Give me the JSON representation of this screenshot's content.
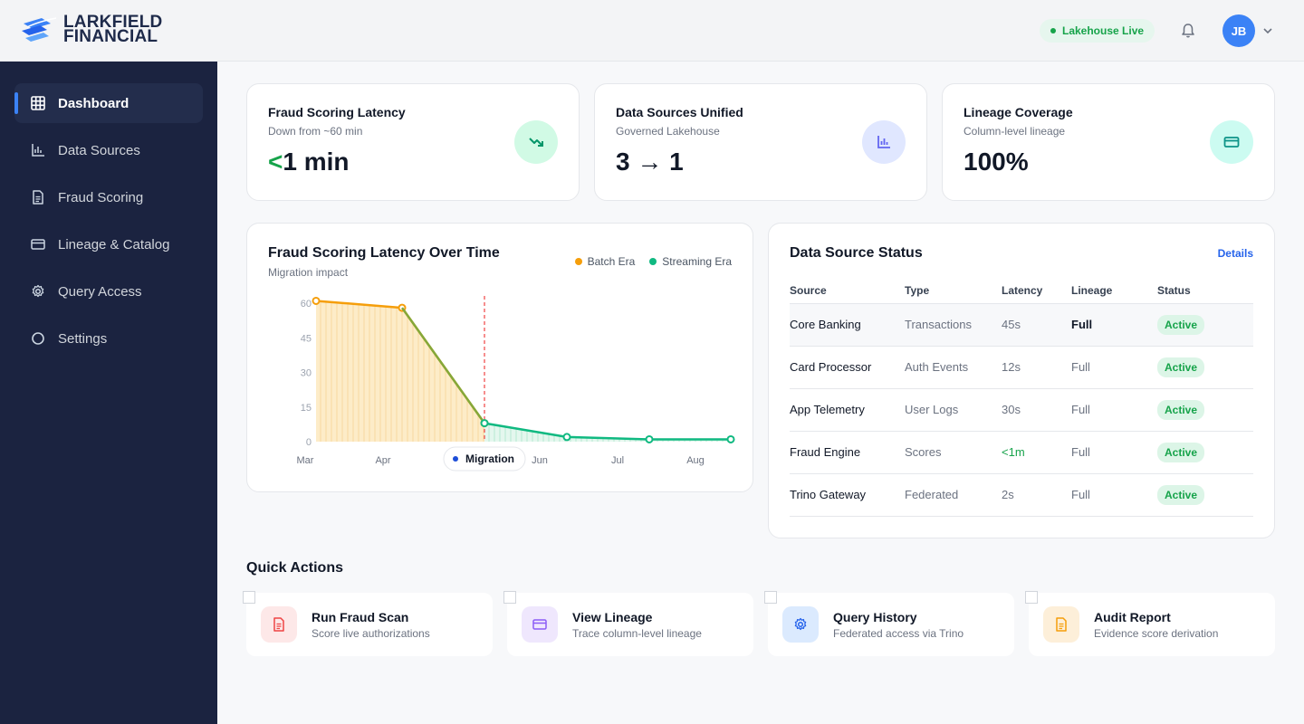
{
  "brand": {
    "line1": "LARKFIELD",
    "line2": "FINANCIAL"
  },
  "header": {
    "status_pill": "Lakehouse Live",
    "avatar_initials": "JB"
  },
  "sidebar": {
    "items": [
      {
        "label": "Dashboard",
        "icon": "grid-icon"
      },
      {
        "label": "Data Sources",
        "icon": "bar-chart-icon"
      },
      {
        "label": "Fraud Scoring",
        "icon": "document-icon"
      },
      {
        "label": "Lineage & Catalog",
        "icon": "card-icon"
      },
      {
        "label": "Query Access",
        "icon": "gear-icon"
      },
      {
        "label": "Settings",
        "icon": "circle-icon"
      }
    ]
  },
  "kpis": [
    {
      "title": "Fraud Scoring Latency",
      "subtitle": "Down from ~60 min",
      "value_prefix": "<",
      "value": "1 min",
      "icon": "trend-down-icon"
    },
    {
      "title": "Data Sources Unified",
      "subtitle": "Governed Lakehouse",
      "value": "3 → 1",
      "icon": "bar-chart-icon"
    },
    {
      "title": "Lineage Coverage",
      "subtitle": "Column-level lineage",
      "value": "100%",
      "icon": "card-icon"
    }
  ],
  "chart_panel": {
    "title": "Fraud Scoring Latency Over Time",
    "subtitle": "Migration impact"
  },
  "chart_data": {
    "type": "line",
    "x_tick_labels": [
      "Mar",
      "Apr",
      "Jun",
      "Jul",
      "Aug"
    ],
    "y_ticks": [
      0,
      15,
      30,
      45,
      60
    ],
    "ylim": [
      0,
      60
    ],
    "series": [
      {
        "name": "Batch Era",
        "color": "#f59e0b",
        "points": [
          [
            "Mar",
            61
          ],
          [
            "Apr",
            58
          ],
          [
            "Migration",
            8
          ]
        ]
      },
      {
        "name": "Streaming Era",
        "color": "#10b981",
        "points": [
          [
            "Migration",
            8
          ],
          [
            "Jun",
            2
          ],
          [
            "Jul",
            1
          ],
          [
            "Aug",
            1
          ]
        ]
      }
    ],
    "annotation": {
      "label": "Migration"
    }
  },
  "status_panel": {
    "title": "Data Source Status",
    "details_label": "Details",
    "columns": [
      "Source",
      "Type",
      "Latency",
      "Lineage",
      "Status"
    ],
    "rows": [
      {
        "source": "Core Banking",
        "type": "Transactions",
        "latency": "45s",
        "lineage": "Full",
        "status": "Active"
      },
      {
        "source": "Card Processor",
        "type": "Auth Events",
        "latency": "12s",
        "lineage": "Full",
        "status": "Active"
      },
      {
        "source": "App Telemetry",
        "type": "User Logs",
        "latency": "30s",
        "lineage": "Full",
        "status": "Active"
      },
      {
        "source": "Fraud Engine",
        "type": "Scores",
        "latency": "<1m",
        "lineage": "Full",
        "status": "Active"
      },
      {
        "source": "Trino Gateway",
        "type": "Federated",
        "latency": "2s",
        "lineage": "Full",
        "status": "Active"
      }
    ]
  },
  "quick_actions": {
    "title": "Quick Actions",
    "items": [
      {
        "title": "Run Fraud Scan",
        "subtitle": "Score live authorizations",
        "icon": "document-icon",
        "bg": "#fde8e8",
        "fg": "#ef4444"
      },
      {
        "title": "View Lineage",
        "subtitle": "Trace column-level lineage",
        "icon": "card-icon",
        "bg": "#efe7fd",
        "fg": "#8b5cf6"
      },
      {
        "title": "Query History",
        "subtitle": "Federated access via Trino",
        "icon": "gear-icon",
        "bg": "#dbeafe",
        "fg": "#2563eb"
      },
      {
        "title": "Audit Report",
        "subtitle": "Evidence score derivation",
        "icon": "document-icon",
        "bg": "#fdefd9",
        "fg": "#f59e0b"
      }
    ]
  },
  "colors": {
    "accent": "#3b82f6",
    "sidebar_bg": "#1b2340",
    "success": "#16a34a",
    "batch": "#f59e0b",
    "streaming": "#10b981"
  }
}
